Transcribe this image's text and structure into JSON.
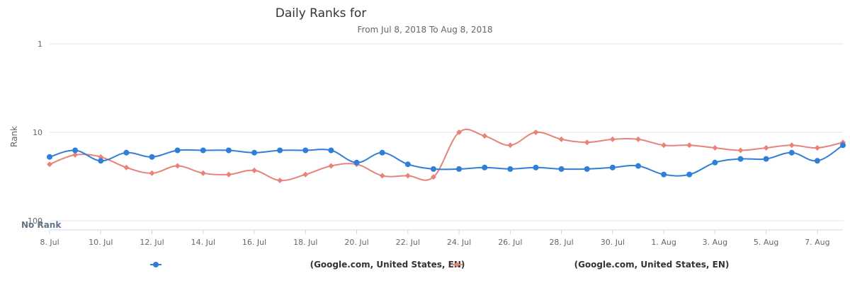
{
  "chart_data": {
    "type": "line",
    "title": "Daily Ranks for",
    "subtitle": "From Jul 8, 2018 To Aug 8, 2018",
    "ylabel": "Rank",
    "no_rank_label": "No Rank",
    "y_axis": {
      "reversed": true,
      "log": true,
      "ticks": [
        {
          "value": 1,
          "label": "1"
        },
        {
          "value": 10,
          "label": "10"
        },
        {
          "value": 100,
          "label": "100"
        }
      ],
      "range": [
        1,
        100
      ]
    },
    "x": [
      "8. Jul",
      "9. Jul",
      "10. Jul",
      "11. Jul",
      "12. Jul",
      "13. Jul",
      "14. Jul",
      "15. Jul",
      "16. Jul",
      "17. Jul",
      "18. Jul",
      "19. Jul",
      "20. Jul",
      "21. Jul",
      "22. Jul",
      "23. Jul",
      "24. Jul",
      "25. Jul",
      "26. Jul",
      "27. Jul",
      "28. Jul",
      "29. Jul",
      "30. Jul",
      "31. Jul",
      "1. Aug",
      "2. Aug",
      "3. Aug",
      "4. Aug",
      "5. Aug",
      "6. Aug",
      "7. Aug",
      "8. Aug"
    ],
    "x_tick_labels": [
      "8. Jul",
      "10. Jul",
      "12. Jul",
      "14. Jul",
      "16. Jul",
      "18. Jul",
      "20. Jul",
      "22. Jul",
      "24. Jul",
      "26. Jul",
      "28. Jul",
      "30. Jul",
      "1. Aug",
      "3. Aug",
      "5. Aug",
      "7. Aug"
    ],
    "series": [
      {
        "name": "(Google.com, United States, EN)",
        "color": "#2f7ed8",
        "marker": "circle",
        "values": [
          19,
          16,
          21,
          17,
          19,
          16,
          16,
          16,
          17,
          16,
          16,
          16,
          22,
          17,
          23,
          26,
          26,
          25,
          26,
          25,
          26,
          26,
          25,
          24,
          30,
          30,
          22,
          20,
          20,
          17,
          21,
          14
        ]
      },
      {
        "name": "(Google.com, United States, EN)",
        "color": "#e8837a",
        "marker": "diamond",
        "values": [
          23,
          18,
          19,
          25,
          29,
          24,
          29,
          30,
          27,
          35,
          30,
          24,
          23,
          31,
          31,
          32,
          10,
          11,
          14,
          10,
          12,
          13,
          12,
          12,
          14,
          14,
          15,
          16,
          15,
          14,
          15,
          13
        ]
      }
    ],
    "legend": {
      "position": "bottom"
    },
    "grid": true
  }
}
